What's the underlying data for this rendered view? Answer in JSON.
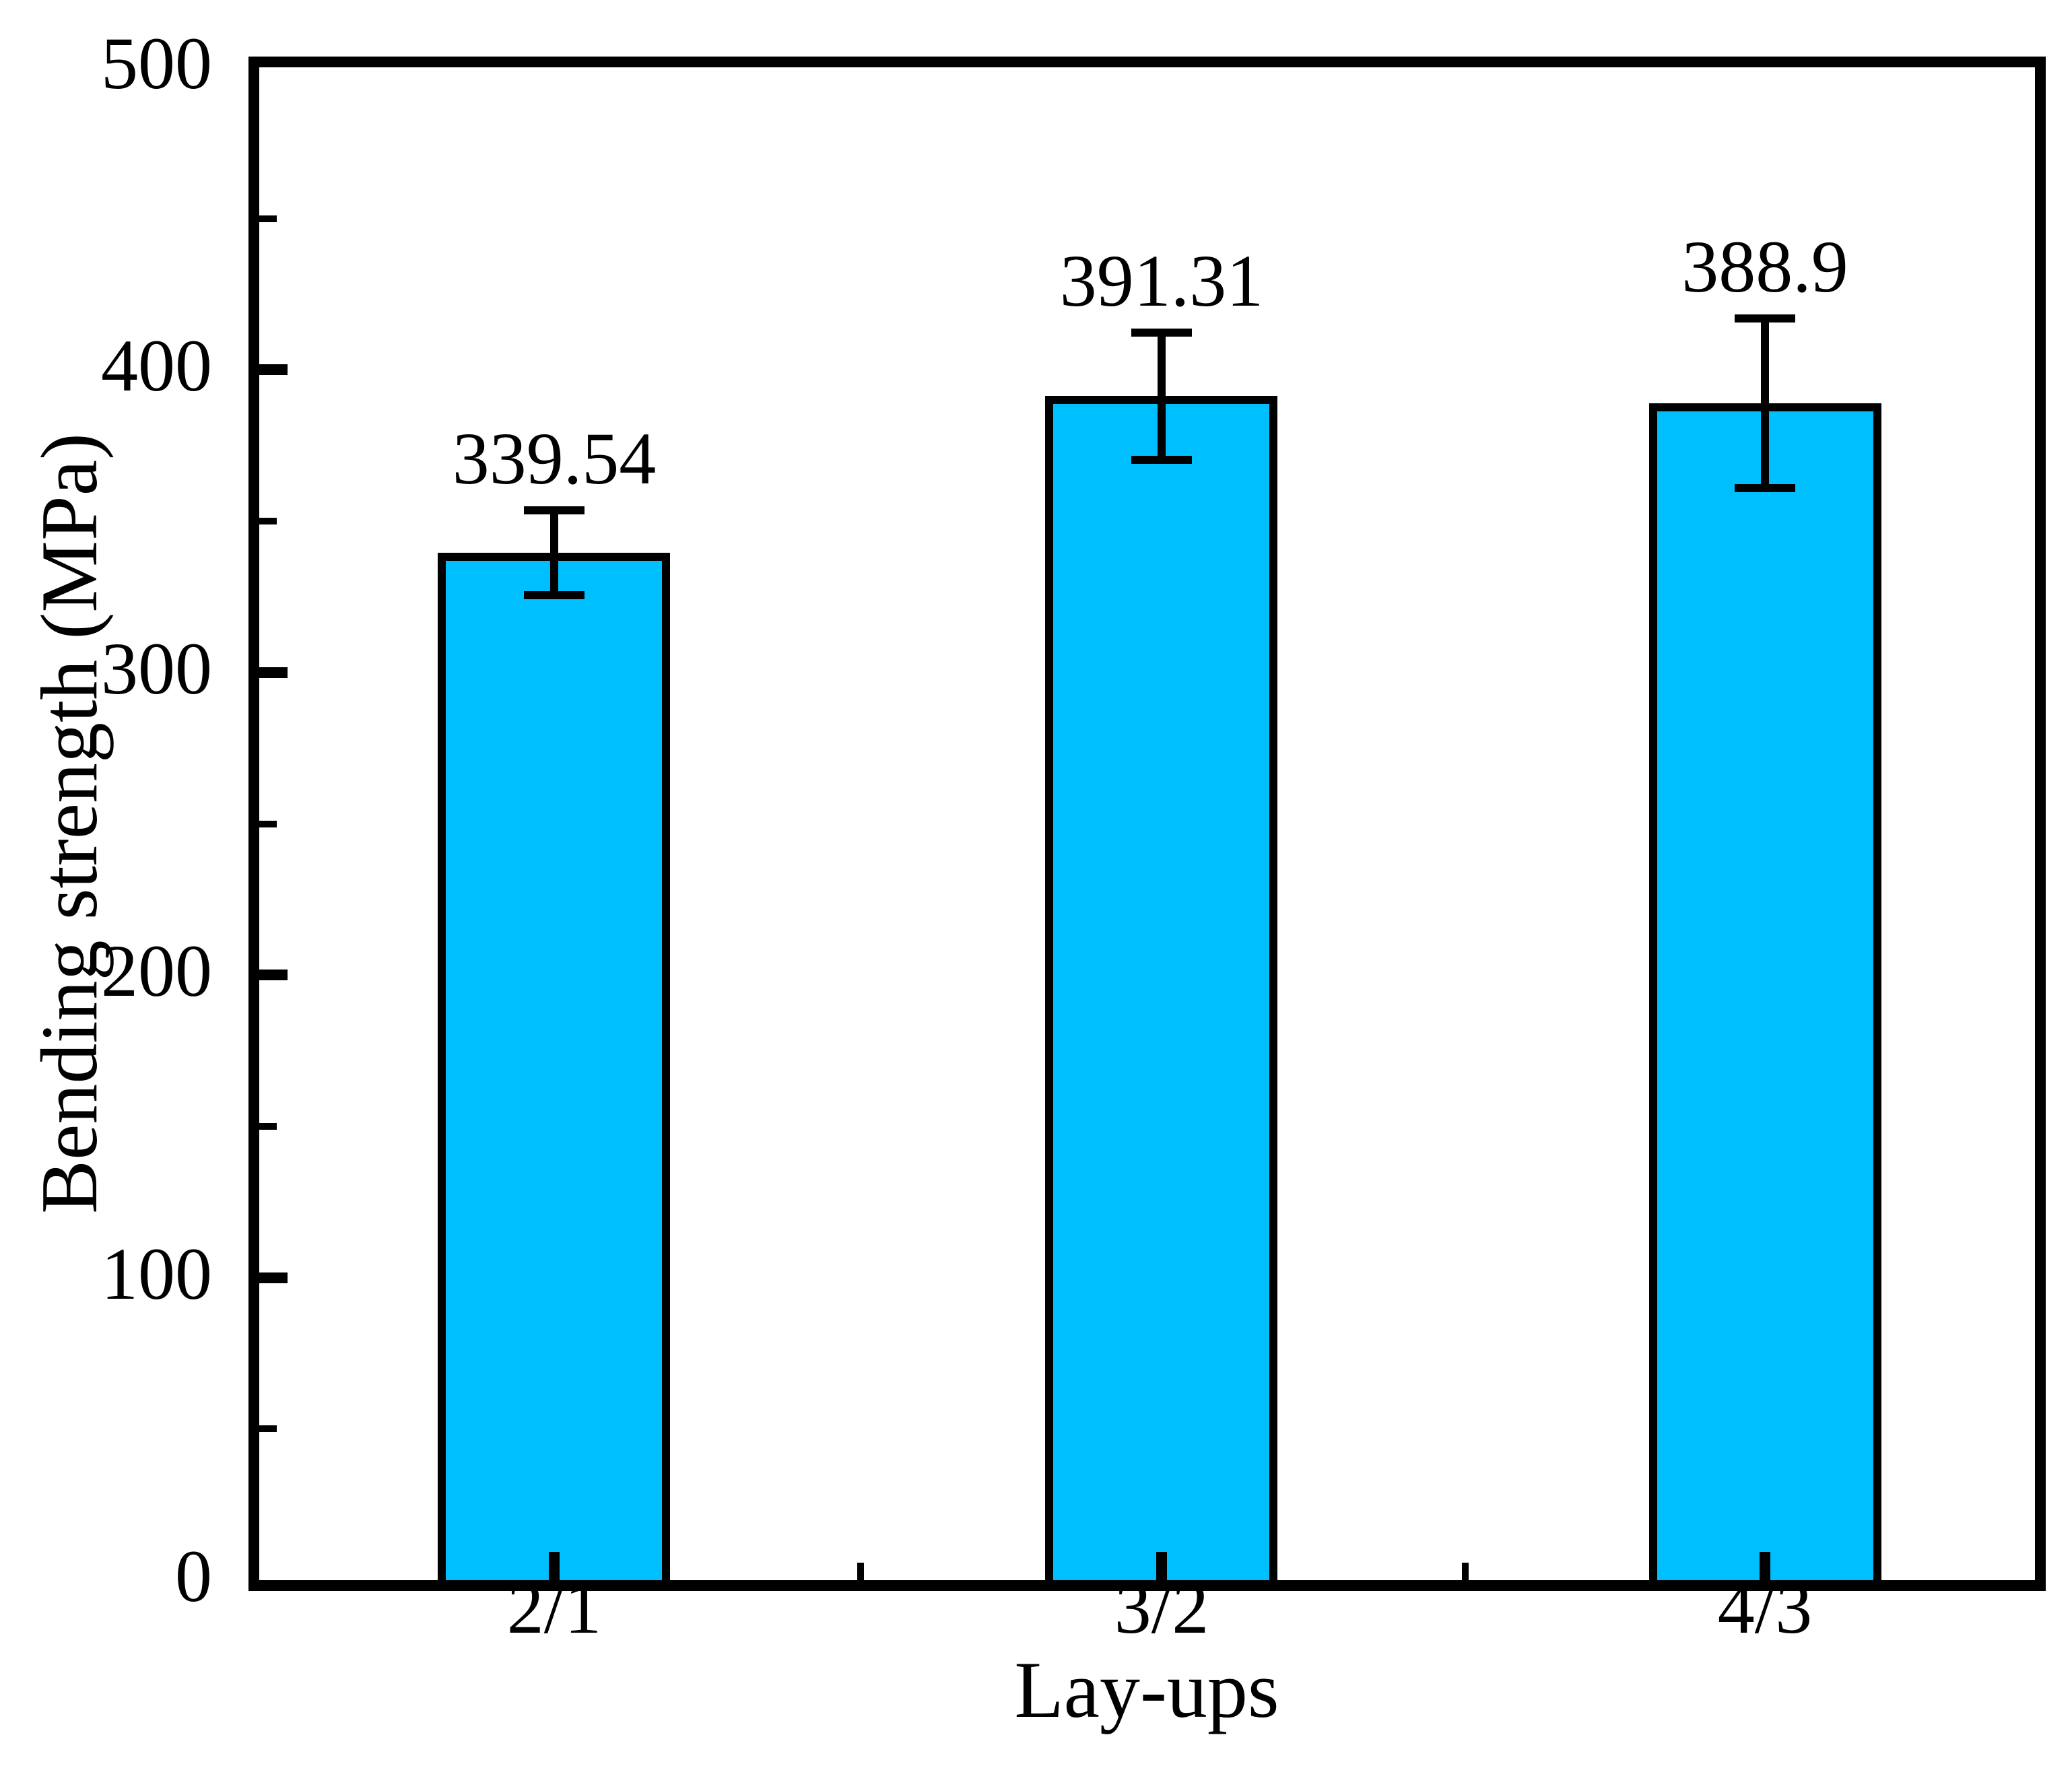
{
  "chart_data": {
    "type": "bar",
    "title": "",
    "categories": [
      "2/1",
      "3/2",
      "4/3"
    ],
    "values": [
      339.54,
      391.31,
      388.9
    ],
    "value_labels": [
      "339.54",
      "391.31",
      "388.9"
    ],
    "errors": [
      14,
      21,
      28
    ],
    "xlabel": "Lay-ups",
    "ylabel": "Bending strength (MPa)",
    "ylim": [
      0,
      500
    ],
    "y_major_ticks": [
      0,
      100,
      200,
      300,
      400,
      500
    ],
    "y_tick_labels": [
      "0",
      "100",
      "200",
      "300",
      "400",
      "500"
    ],
    "y_minor_ticks": [
      50,
      150,
      250,
      350,
      450
    ],
    "bar_color": "#00BFFF",
    "bar_border_color": "#000000",
    "axis_color": "#000000",
    "background_color": "#FFFFFF",
    "grid": false,
    "legend_position": "none"
  }
}
